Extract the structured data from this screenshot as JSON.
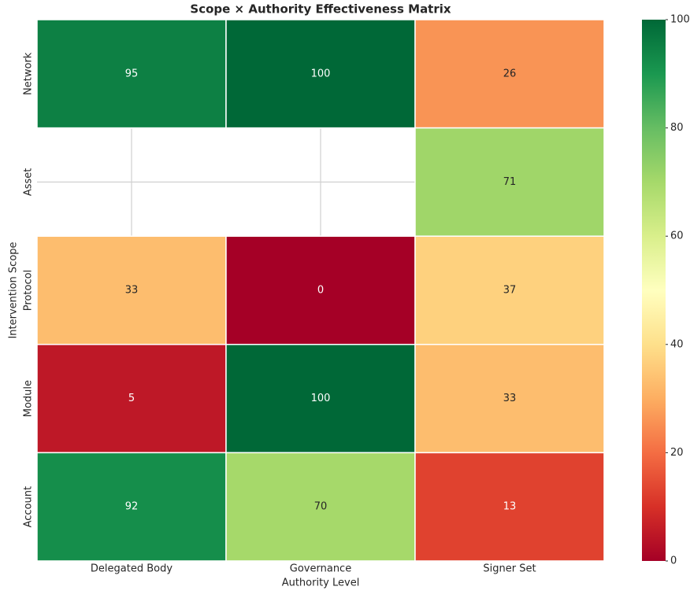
{
  "chart_data": {
    "type": "heatmap",
    "title": "Scope × Authority Effectiveness Matrix",
    "x_label": "Authority Level",
    "y_label": "Intervention Scope",
    "categories": [
      "Delegated Body",
      "Governance",
      "Signer Set"
    ],
    "rows": [
      "Network",
      "Asset",
      "Protocol",
      "Module",
      "Account"
    ],
    "values": [
      [
        95,
        100,
        26
      ],
      [
        null,
        null,
        71
      ],
      [
        33,
        0,
        37
      ],
      [
        5,
        100,
        33
      ],
      [
        92,
        70,
        13
      ]
    ],
    "zlim": [
      0,
      100
    ],
    "zticks": [
      0,
      20,
      40,
      60,
      80,
      100
    ],
    "colormap": [
      "#a50026",
      "#d73027",
      "#f46d43",
      "#fdae61",
      "#fee08b",
      "#ffffbf",
      "#d9ef8b",
      "#a6d96a",
      "#66bd63",
      "#1a9850",
      "#006837"
    ],
    "grid": true
  }
}
